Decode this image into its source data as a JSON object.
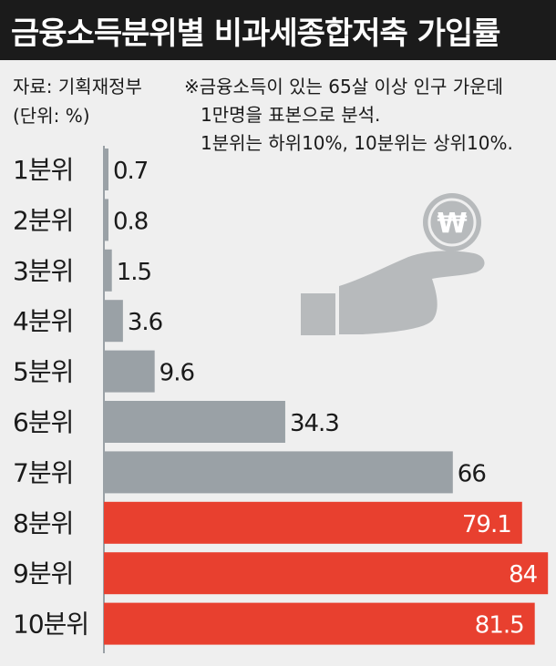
{
  "title": "금융소득분위별 비과세종합저축 가입률",
  "source": "자료: 기획재정부",
  "unit": "(단위: %)",
  "note": [
    "※금융소득이 있는 65살 이상 인구 가운데",
    "1만명을 표본으로 분석.",
    "1분위는 하위10%, 10분위는 상위10%."
  ],
  "icon": "hand-holding-won-coin-icon",
  "coin_symbol": "₩",
  "colors": {
    "background": "#efefef",
    "title_background": "#1b1b1b",
    "grey_bar": "#9aa1a6",
    "red_bar": "#e8402f",
    "icon": "#b7babc"
  },
  "chart_data": {
    "type": "bar",
    "orientation": "horizontal",
    "categories": [
      "1분위",
      "2분위",
      "3분위",
      "4분위",
      "5분위",
      "6분위",
      "7분위",
      "8분위",
      "9분위",
      "10분위"
    ],
    "values": [
      0.7,
      0.8,
      1.5,
      3.6,
      9.6,
      34.3,
      66,
      79.1,
      84,
      81.5
    ],
    "value_labels": [
      "0.7",
      "0.8",
      "1.5",
      "3.6",
      "9.6",
      "34.3",
      "66",
      "79.1",
      "84",
      "81.5"
    ],
    "highlight": [
      false,
      false,
      false,
      false,
      false,
      false,
      false,
      true,
      true,
      true
    ],
    "xlim": [
      0,
      100
    ],
    "grid": false,
    "legend": "none"
  }
}
